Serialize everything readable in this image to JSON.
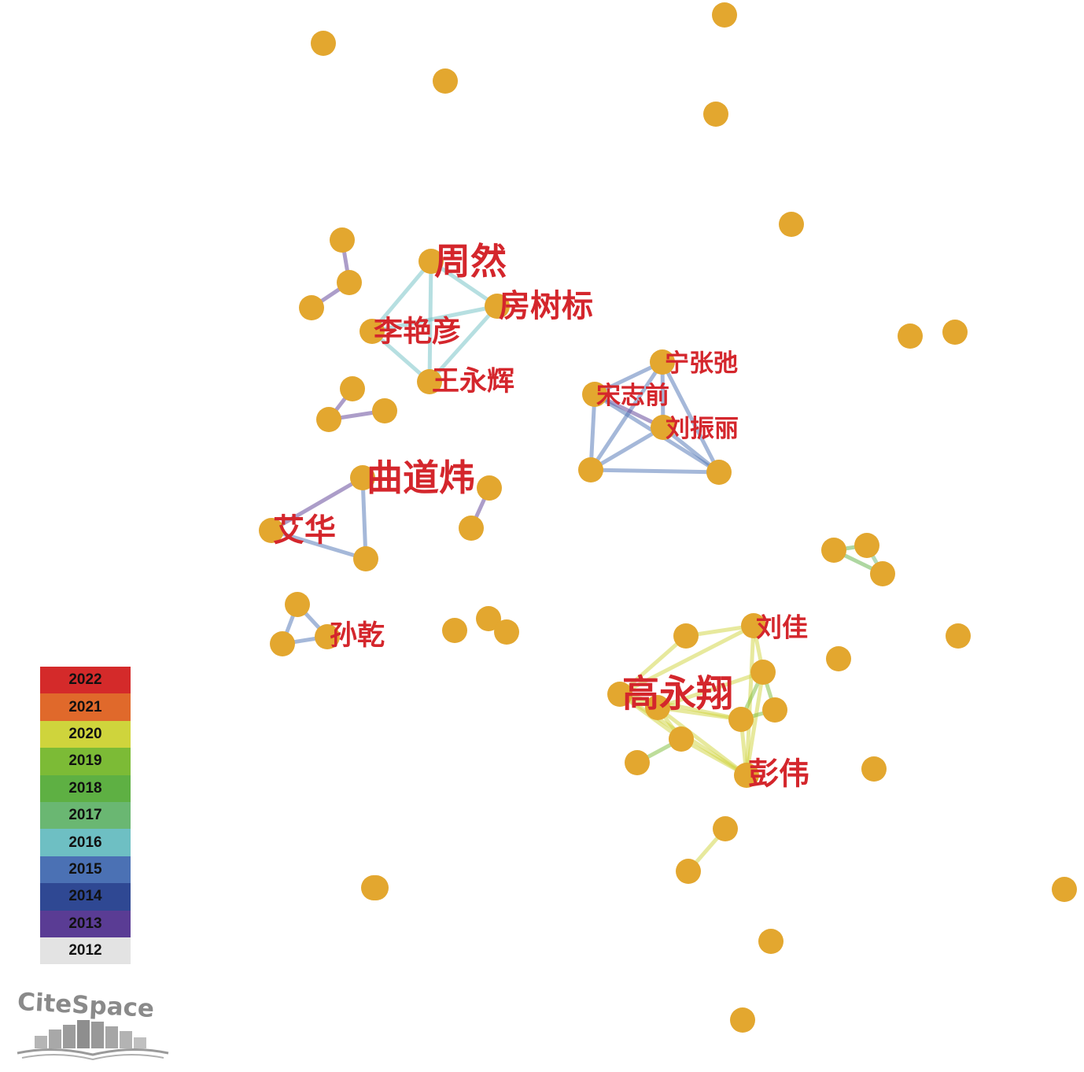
{
  "network": {
    "node_color": "#e3a72f",
    "label_color": "#d4262c",
    "nodes": [
      {
        "id": "n1"
      },
      {
        "id": "n2"
      },
      {
        "id": "n3"
      },
      {
        "id": "n4"
      },
      {
        "id": "n5"
      },
      {
        "id": "n6"
      },
      {
        "id": "n7"
      },
      {
        "id": "n8"
      },
      {
        "id": "n9"
      },
      {
        "id": "n10"
      },
      {
        "id": "n11"
      },
      {
        "id": "n12"
      },
      {
        "id": "zhouran",
        "label": "周然"
      },
      {
        "id": "fangshubiao",
        "label": "房树标"
      },
      {
        "id": "liyanyan",
        "label": "李艳彦"
      },
      {
        "id": "wangyonghui",
        "label": "王永辉"
      },
      {
        "id": "n13"
      },
      {
        "id": "n14"
      },
      {
        "id": "n15"
      },
      {
        "id": "ningzhangchi",
        "label": "宁张弛"
      },
      {
        "id": "songzhiqian",
        "label": "宋志前"
      },
      {
        "id": "liuzhenli",
        "label": "刘振丽"
      },
      {
        "id": "n16"
      },
      {
        "id": "n17"
      },
      {
        "id": "qudaowei",
        "label": "曲道炜"
      },
      {
        "id": "aihua",
        "label": "艾华"
      },
      {
        "id": "n18"
      },
      {
        "id": "n19"
      },
      {
        "id": "n20"
      },
      {
        "id": "n21"
      },
      {
        "id": "n22"
      },
      {
        "id": "n23"
      },
      {
        "id": "n24"
      },
      {
        "id": "sunqian",
        "label": "孙乾"
      },
      {
        "id": "n25"
      },
      {
        "id": "n26"
      },
      {
        "id": "n27"
      },
      {
        "id": "n28"
      },
      {
        "id": "n29"
      },
      {
        "id": "liujia",
        "label": "刘佳"
      },
      {
        "id": "n30"
      },
      {
        "id": "n31"
      },
      {
        "id": "gaoyongxiang",
        "label": "高永翔"
      },
      {
        "id": "n32"
      },
      {
        "id": "n33"
      },
      {
        "id": "n34"
      },
      {
        "id": "n35"
      },
      {
        "id": "n36"
      },
      {
        "id": "pengwei",
        "label": "彭伟"
      },
      {
        "id": "n37"
      },
      {
        "id": "n38"
      },
      {
        "id": "n39"
      },
      {
        "id": "n40"
      },
      {
        "id": "n41"
      },
      {
        "id": "n42"
      },
      {
        "id": "n43"
      }
    ],
    "links": [
      {
        "source": "n10",
        "target": "n11",
        "year": "2013"
      },
      {
        "source": "n11",
        "target": "n12",
        "year": "2013"
      },
      {
        "source": "zhouran",
        "target": "fangshubiao",
        "year": "2016"
      },
      {
        "source": "zhouran",
        "target": "liyanyan",
        "year": "2016"
      },
      {
        "source": "zhouran",
        "target": "wangyonghui",
        "year": "2016"
      },
      {
        "source": "fangshubiao",
        "target": "liyanyan",
        "year": "2016"
      },
      {
        "source": "fangshubiao",
        "target": "wangyonghui",
        "year": "2016"
      },
      {
        "source": "liyanyan",
        "target": "wangyonghui",
        "year": "2016"
      },
      {
        "source": "n13",
        "target": "n15",
        "year": "2013"
      },
      {
        "source": "n14",
        "target": "n15",
        "year": "2013"
      },
      {
        "source": "ningzhangchi",
        "target": "songzhiqian",
        "year": "2015"
      },
      {
        "source": "ningzhangchi",
        "target": "liuzhenli",
        "year": "2015"
      },
      {
        "source": "ningzhangchi",
        "target": "n16",
        "year": "2015"
      },
      {
        "source": "ningzhangchi",
        "target": "n17",
        "year": "2015"
      },
      {
        "source": "songzhiqian",
        "target": "liuzhenli",
        "year": "2013"
      },
      {
        "source": "songzhiqian",
        "target": "n16",
        "year": "2015"
      },
      {
        "source": "songzhiqian",
        "target": "n17",
        "year": "2015"
      },
      {
        "source": "liuzhenli",
        "target": "n16",
        "year": "2015"
      },
      {
        "source": "liuzhenli",
        "target": "n17",
        "year": "2015"
      },
      {
        "source": "n16",
        "target": "n17",
        "year": "2015"
      },
      {
        "source": "qudaowei",
        "target": "aihua",
        "year": "2013"
      },
      {
        "source": "qudaowei",
        "target": "n18",
        "year": "2015"
      },
      {
        "source": "aihua",
        "target": "n18",
        "year": "2015"
      },
      {
        "source": "n19",
        "target": "n20",
        "year": "2013"
      },
      {
        "source": "n24",
        "target": "sunqian",
        "year": "2015"
      },
      {
        "source": "n24",
        "target": "n25",
        "year": "2015"
      },
      {
        "source": "sunqian",
        "target": "n25",
        "year": "2015"
      },
      {
        "source": "n26",
        "target": "n27",
        "year": "2018"
      },
      {
        "source": "n26",
        "target": "n28",
        "year": "2018"
      },
      {
        "source": "n27",
        "target": "n28",
        "year": "2017"
      },
      {
        "source": "n29",
        "target": "liujia",
        "year": "2020"
      },
      {
        "source": "n29",
        "target": "gaoyongxiang",
        "year": "2020"
      },
      {
        "source": "liujia",
        "target": "gaoyongxiang",
        "year": "2020"
      },
      {
        "source": "liujia",
        "target": "n31",
        "year": "2020"
      },
      {
        "source": "liujia",
        "target": "pengwei",
        "year": "2020"
      },
      {
        "source": "n31",
        "target": "n32",
        "year": "2019"
      },
      {
        "source": "n31",
        "target": "n33",
        "year": "2019"
      },
      {
        "source": "n31",
        "target": "pengwei",
        "year": "2020"
      },
      {
        "source": "n31",
        "target": "n34",
        "year": "2020"
      },
      {
        "source": "gaoyongxiang",
        "target": "n33",
        "year": "2020"
      },
      {
        "source": "gaoyongxiang",
        "target": "n34",
        "year": "2020"
      },
      {
        "source": "gaoyongxiang",
        "target": "n35",
        "year": "2020"
      },
      {
        "source": "gaoyongxiang",
        "target": "pengwei",
        "year": "2020"
      },
      {
        "source": "n34",
        "target": "n33",
        "year": "2020"
      },
      {
        "source": "n34",
        "target": "pengwei",
        "year": "2020"
      },
      {
        "source": "n34",
        "target": "n35",
        "year": "2020"
      },
      {
        "source": "n33",
        "target": "n32",
        "year": "2019"
      },
      {
        "source": "n33",
        "target": "pengwei",
        "year": "2020"
      },
      {
        "source": "n35",
        "target": "n36",
        "year": "2019"
      },
      {
        "source": "n35",
        "target": "pengwei",
        "year": "2020"
      },
      {
        "source": "n38",
        "target": "n39",
        "year": "2020"
      }
    ]
  },
  "legend": {
    "items": [
      {
        "year": "2022",
        "color": "#d42a2a"
      },
      {
        "year": "2021",
        "color": "#e0692b"
      },
      {
        "year": "2020",
        "color": "#cfd43c"
      },
      {
        "year": "2019",
        "color": "#7cbb36"
      },
      {
        "year": "2018",
        "color": "#5eb043"
      },
      {
        "year": "2017",
        "color": "#6ab772"
      },
      {
        "year": "2016",
        "color": "#6ebfc3"
      },
      {
        "year": "2015",
        "color": "#4b71b4"
      },
      {
        "year": "2014",
        "color": "#2f4893"
      },
      {
        "year": "2013",
        "color": "#5a3c94"
      },
      {
        "year": "2012",
        "color": "#e3e3e3"
      }
    ]
  },
  "logo": {
    "text": "CiteSpace",
    "color": "#8a8a8a"
  }
}
